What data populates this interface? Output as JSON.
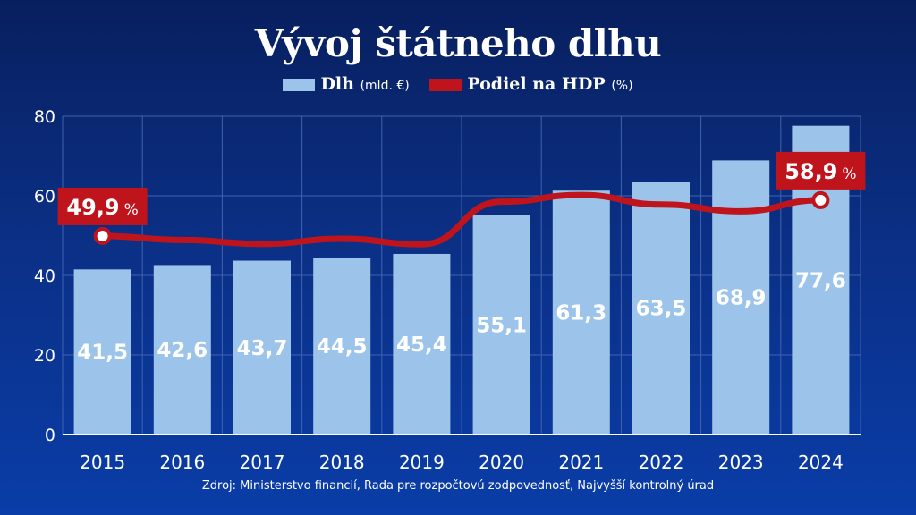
{
  "chart_data": {
    "type": "bar",
    "title": "Vývoj štátneho dlhu",
    "categories": [
      "2015",
      "2016",
      "2017",
      "2018",
      "2019",
      "2020",
      "2021",
      "2022",
      "2023",
      "2024"
    ],
    "ylim": [
      0,
      80
    ],
    "yticks": [
      0,
      20,
      40,
      60,
      80
    ],
    "grid": true,
    "series": [
      {
        "name": "Dlh",
        "unit": "(mld. €)",
        "type": "bar",
        "values": [
          41.5,
          42.6,
          43.7,
          44.5,
          45.4,
          55.1,
          61.3,
          63.5,
          68.9,
          77.6
        ],
        "labels": [
          "41,5",
          "42,6",
          "43,7",
          "44,5",
          "45,4",
          "55,1",
          "61,3",
          "63,5",
          "68,9",
          "77,6"
        ],
        "color": "#9cc4ea"
      },
      {
        "name": "Podiel na HDP",
        "unit": "(%)",
        "type": "line",
        "values": [
          49.9,
          48.9,
          47.9,
          49.2,
          47.8,
          58.5,
          60.2,
          57.8,
          56.1,
          58.9
        ],
        "color": "#c0141c",
        "callouts": [
          {
            "index": 0,
            "value": "49,9",
            "unit": "%"
          },
          {
            "index": 9,
            "value": "58,9",
            "unit": "%"
          }
        ]
      }
    ]
  },
  "source": "Zdroj: Ministerstvo financií, Rada pre rozpočtovú zodpovednosť, Najvyšší kontrolný úrad"
}
